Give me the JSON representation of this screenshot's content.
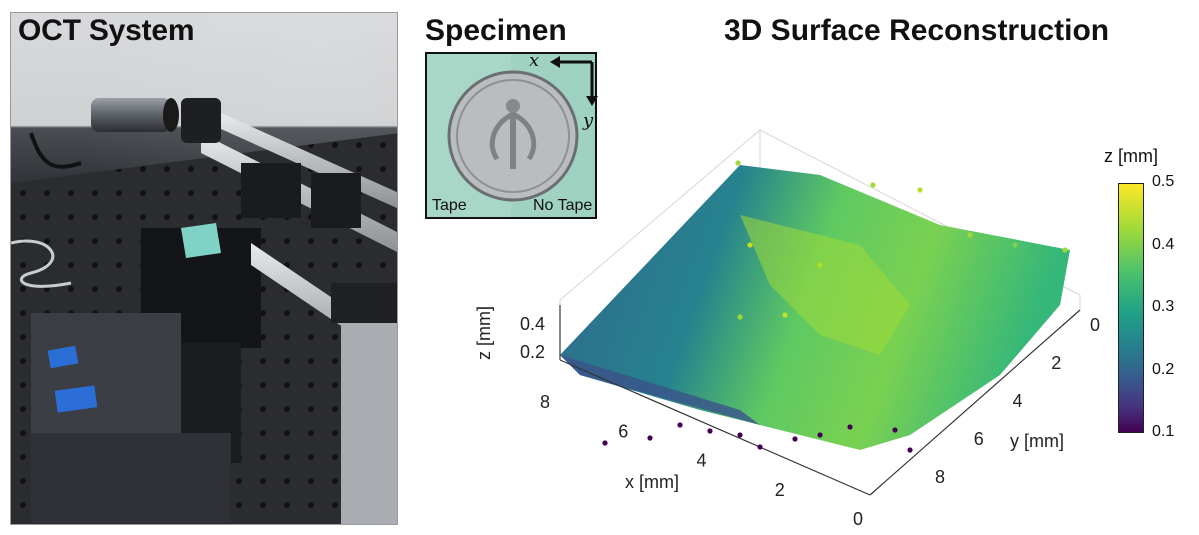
{
  "panels": {
    "oct": {
      "title": "OCT System"
    },
    "specimen": {
      "title": "Specimen",
      "axis_x_label": "x",
      "axis_y_label": "y",
      "left_label": "Tape",
      "right_label": "No Tape"
    },
    "reconstruction": {
      "title": "3D Surface Reconstruction"
    }
  },
  "chart_data": {
    "type": "scatter",
    "title": "3D Surface Reconstruction",
    "xlabel": "x [mm]",
    "ylabel": "y [mm]",
    "zlabel": "z [mm]",
    "colorbar_label": "z [mm]",
    "x_ticks": [
      "8",
      "6",
      "4",
      "2",
      "0"
    ],
    "y_ticks": [
      "0",
      "2",
      "4",
      "6",
      "8"
    ],
    "z_ticks": [
      "0.4",
      "0.2"
    ],
    "colorbar_ticks": [
      "0.5",
      "0.4",
      "0.3",
      "0.2",
      "0.1"
    ],
    "xlim": [
      0,
      8
    ],
    "ylim": [
      0,
      8
    ],
    "zlim": [
      0.1,
      0.5
    ],
    "colormap": "viridis",
    "grid": true
  },
  "colors": {
    "viridis_low": "#440154",
    "viridis_mid": "#21918c",
    "viridis_high": "#fde725",
    "specimen_background": "#a8d7c7",
    "tape_blue": "#2b6fd6"
  }
}
